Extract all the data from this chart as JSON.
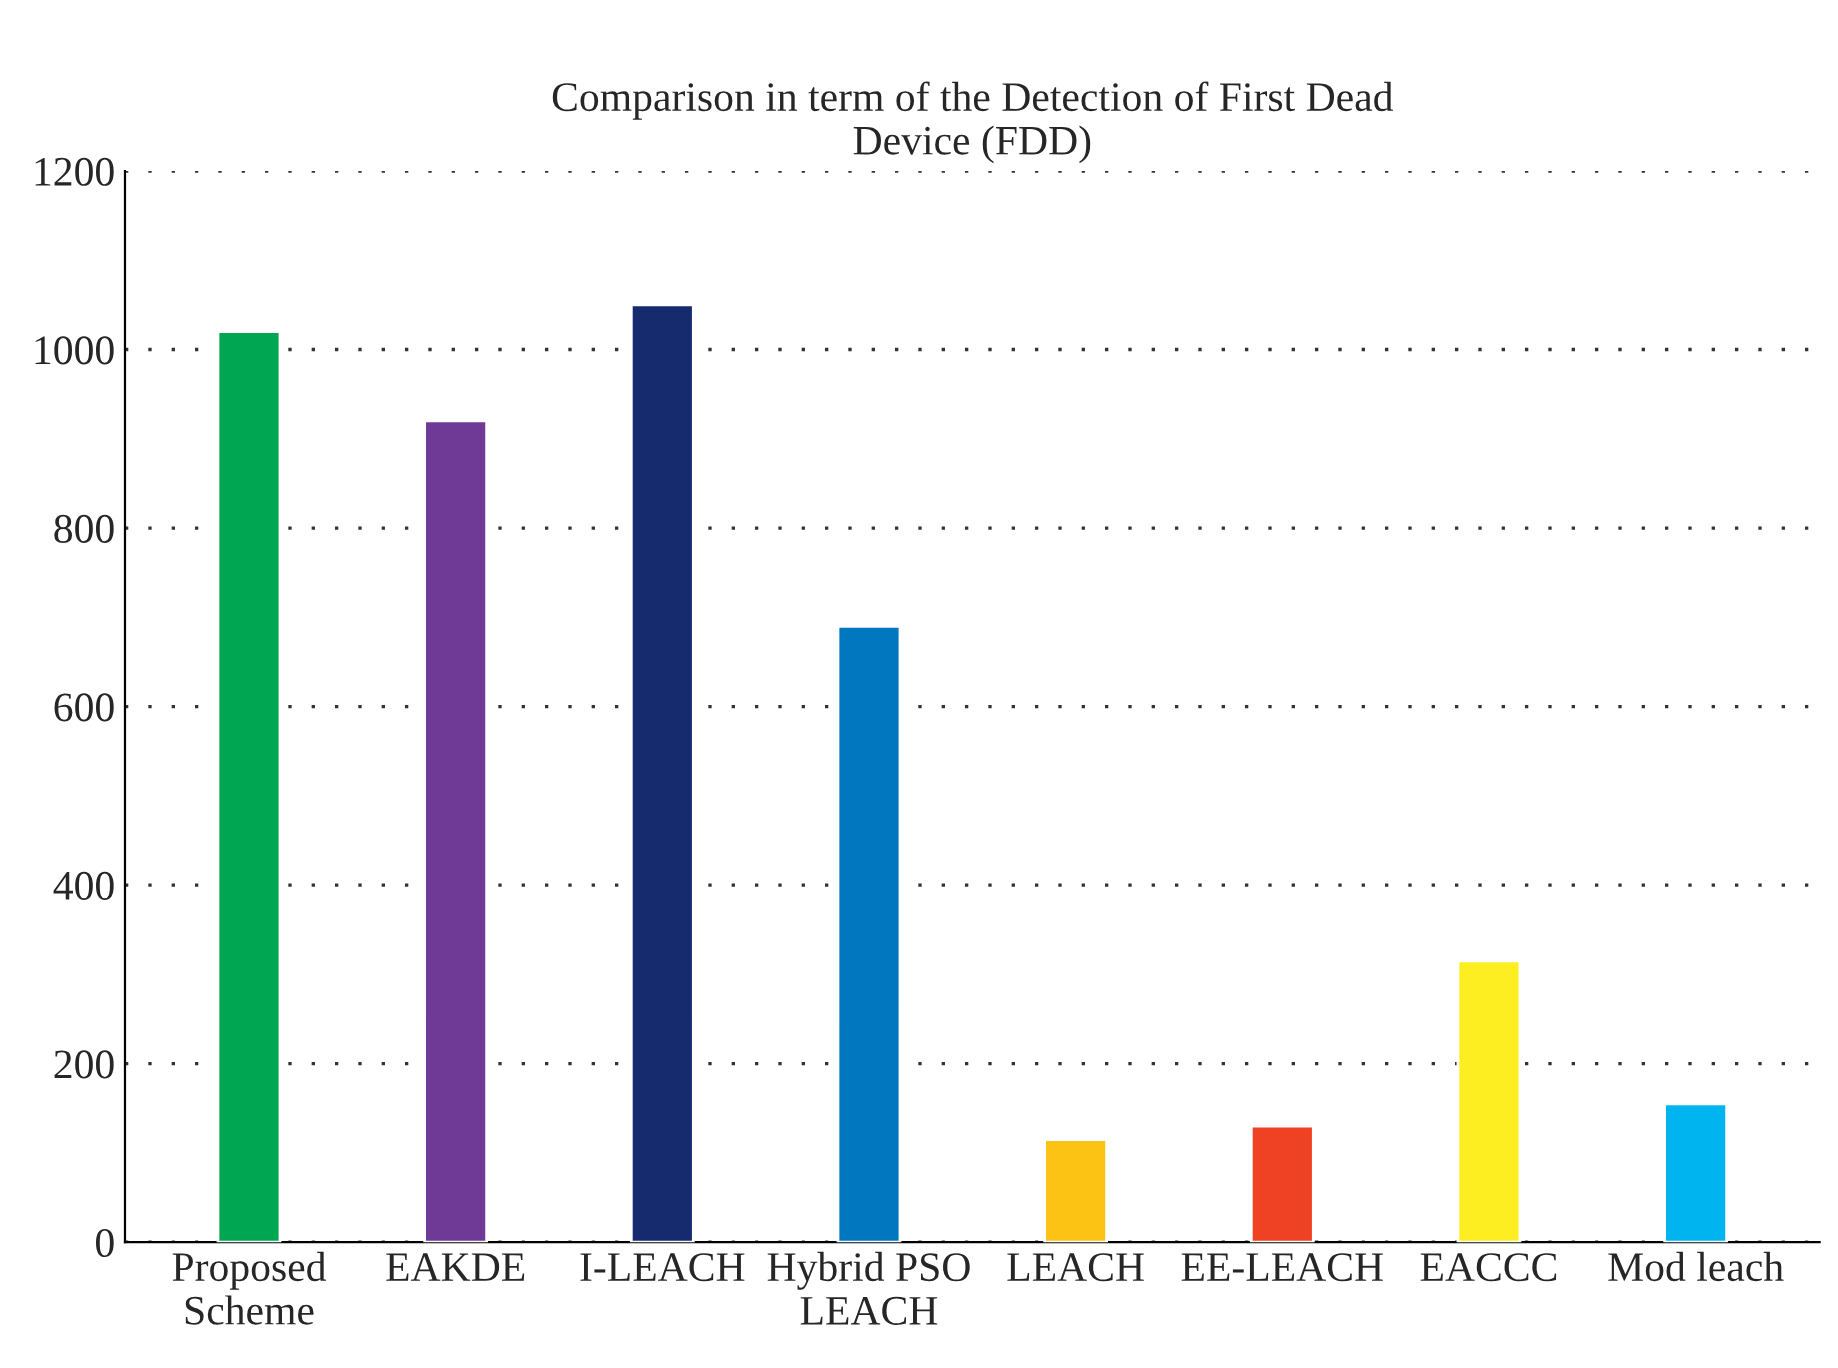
{
  "chart_data": {
    "type": "bar",
    "title": "Comparison in term of the Detection of First Dead\nDevice (FDD)",
    "categories": [
      "Proposed\nScheme",
      "EAKDE",
      "I-LEACH",
      "Hybrid PSO\nLEACH",
      "LEACH",
      "EE-LEACH",
      "EACCC",
      "Mod leach"
    ],
    "values": [
      1020,
      920,
      1050,
      690,
      115,
      130,
      315,
      155
    ],
    "colors": [
      "#00a651",
      "#6f3996",
      "#162a6e",
      "#0077be",
      "#fdc314",
      "#ef4123",
      "#fcee21",
      "#00b5ef"
    ],
    "ylim": [
      0,
      1200
    ],
    "yticks": [
      0,
      200,
      400,
      600,
      800,
      1000,
      1200
    ],
    "grid": "y"
  }
}
